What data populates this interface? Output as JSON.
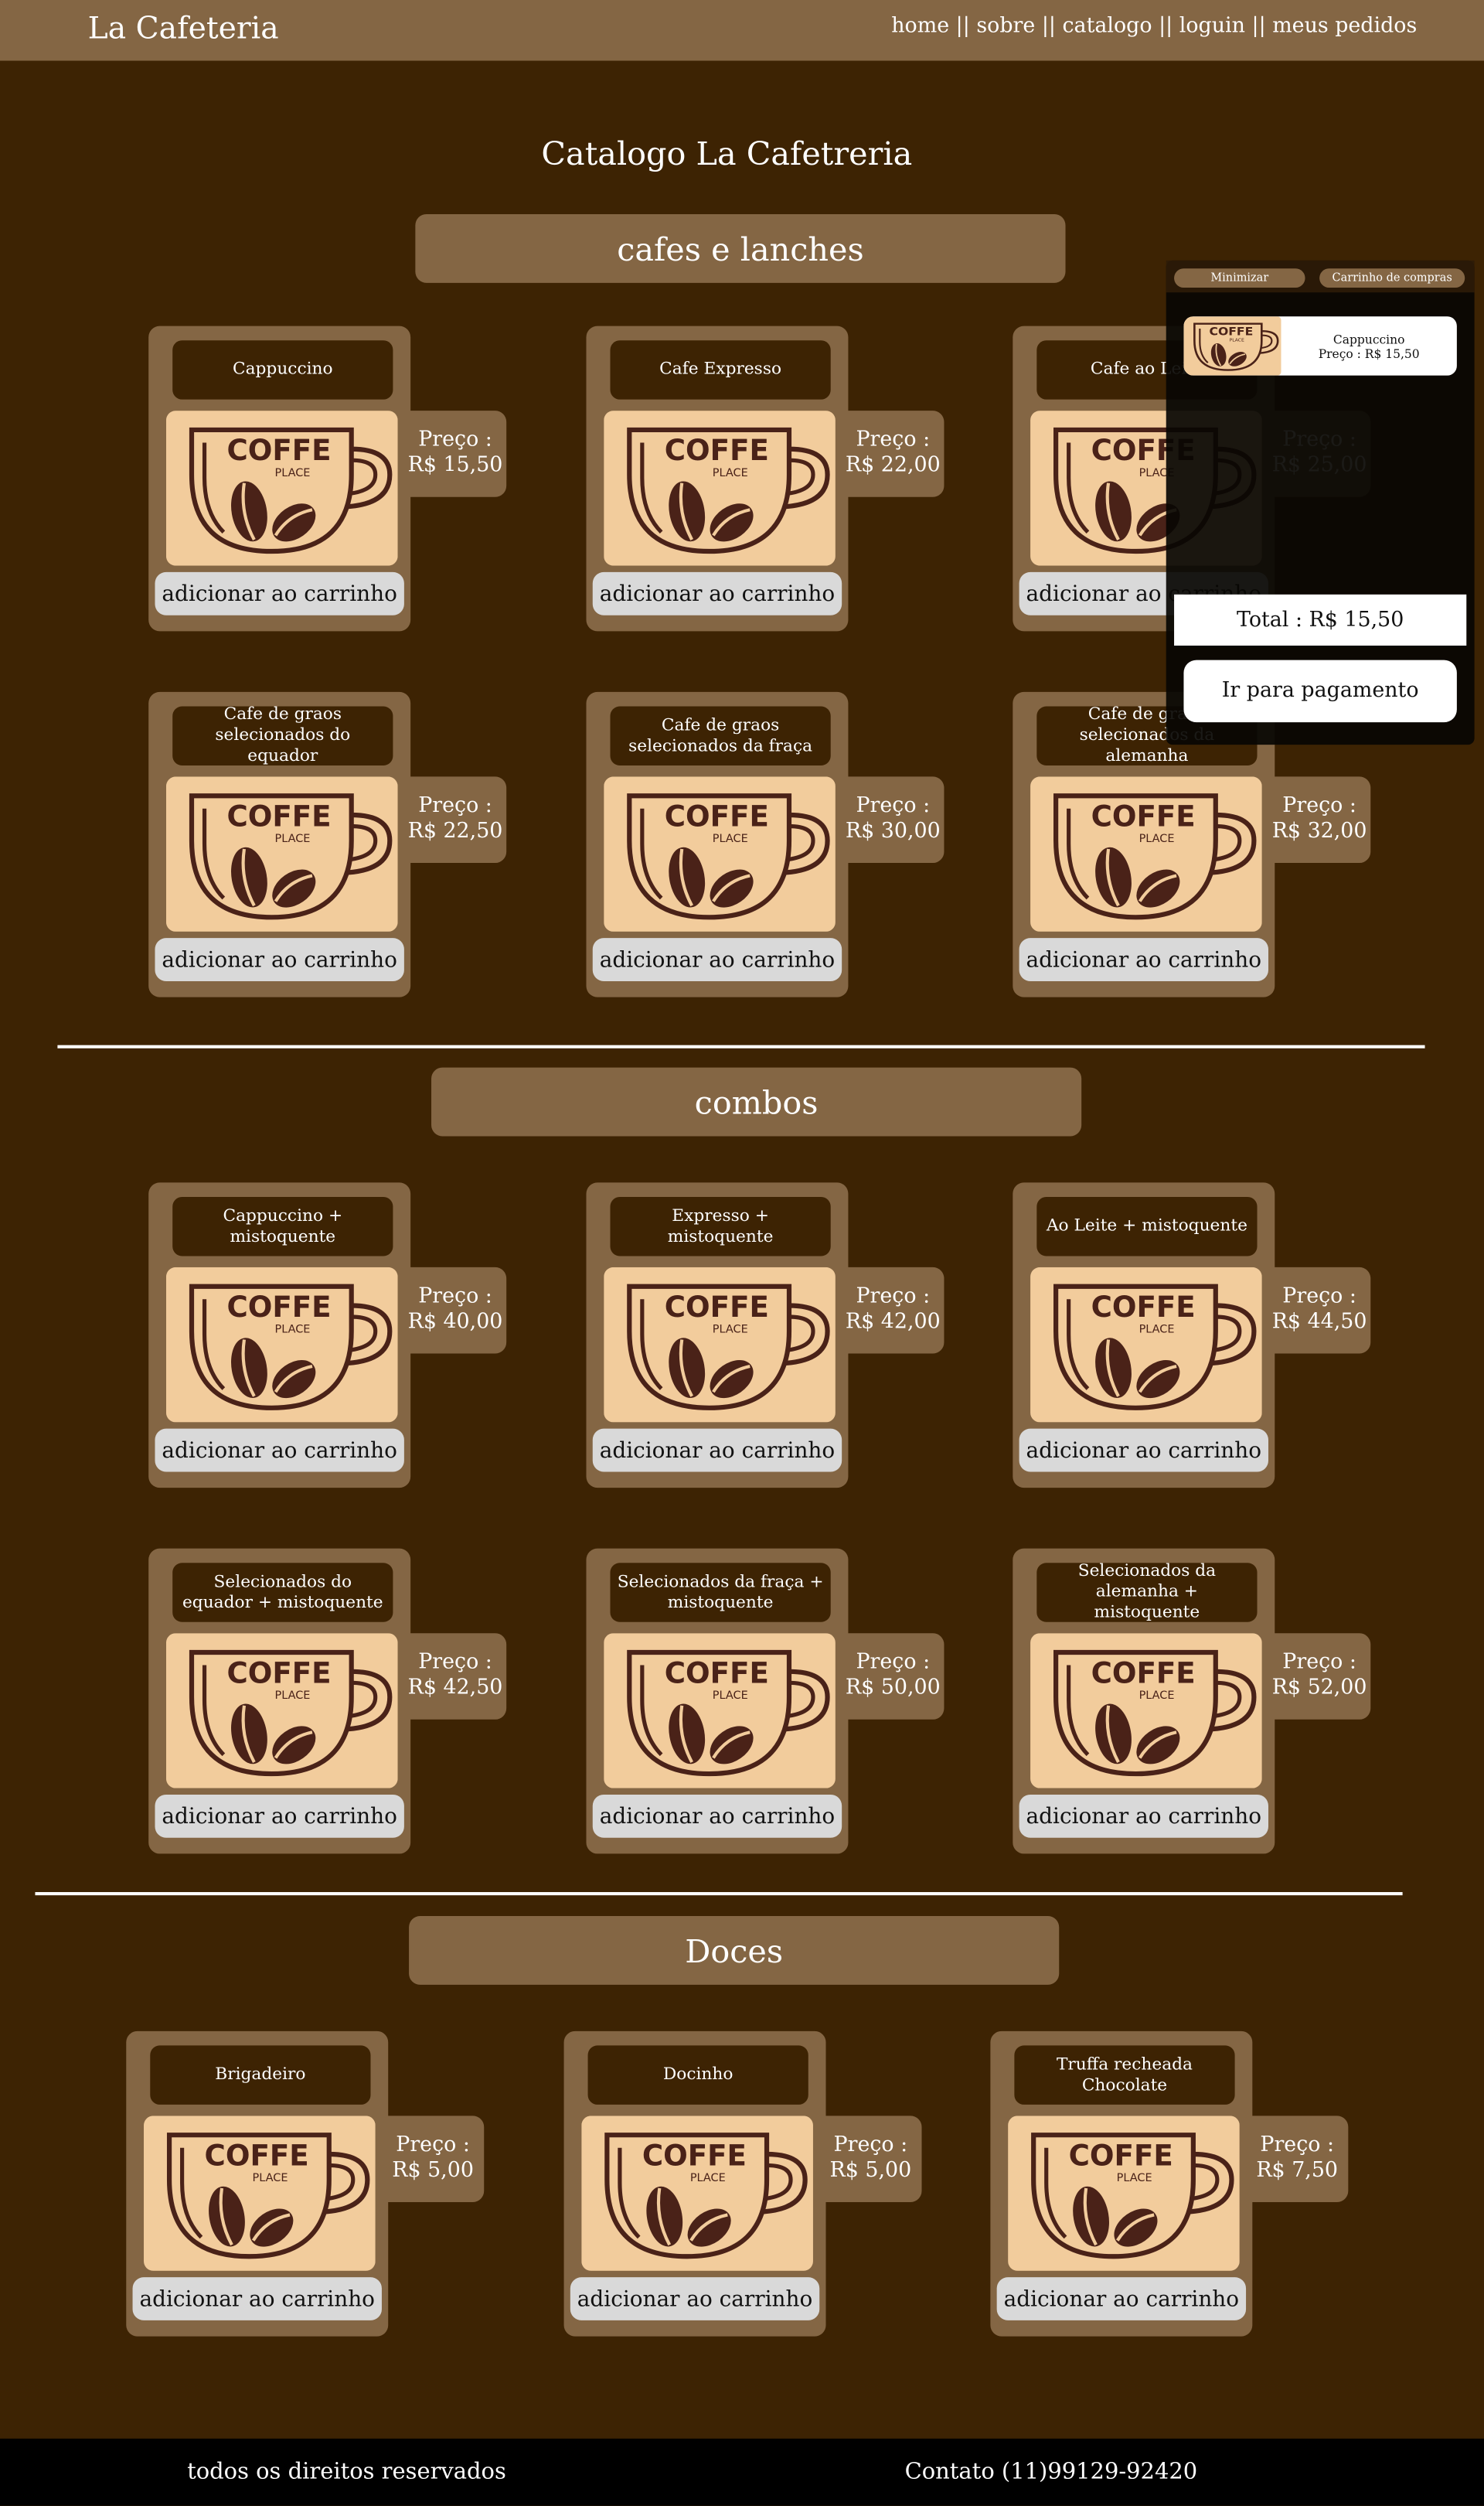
{
  "header": {
    "brand": "La Cafeteria",
    "nav": [
      "home",
      "sobre",
      "catalogo",
      "loguin",
      "meus pedidos"
    ],
    "nav_separator": "||"
  },
  "page_title": "Catalogo La Cafetreria",
  "price_label": "Preço :",
  "add_button": "adicionar ao carrinho",
  "logo": {
    "word": "COFFE",
    "sub": "PLACE"
  },
  "sections": [
    {
      "title": "cafes e lanches",
      "items": [
        {
          "name": "Cappuccino",
          "price": "R$ 15,50"
        },
        {
          "name": "Cafe Expresso",
          "price": "R$ 22,00"
        },
        {
          "name": "Cafe ao Leite",
          "price": "R$ 25,00"
        },
        {
          "name": "Cafe de graos selecionados do equador",
          "price": "R$ 22,50"
        },
        {
          "name": "Cafe de graos selecionados da fraça",
          "price": "R$ 30,00"
        },
        {
          "name": "Cafe de graos selecionados da alemanha",
          "price": "R$ 32,00"
        }
      ]
    },
    {
      "title": "combos",
      "items": [
        {
          "name": "Cappuccino + mistoquente",
          "price": "R$ 40,00"
        },
        {
          "name": "Expresso + mistoquente",
          "price": "R$ 42,00"
        },
        {
          "name": "Ao Leite + mistoquente",
          "price": "R$ 44,50"
        },
        {
          "name": "Selecionados do equador + mistoquente",
          "price": "R$ 42,50"
        },
        {
          "name": "Selecionados da fraça + mistoquente",
          "price": "R$ 50,00"
        },
        {
          "name": "Selecionados da alemanha + mistoquente",
          "price": "R$ 52,00"
        }
      ]
    },
    {
      "title": "Doces",
      "items": [
        {
          "name": "Brigadeiro",
          "price": "R$ 5,00"
        },
        {
          "name": "Docinho",
          "price": "R$ 5,00"
        },
        {
          "name": "Truffa recheada Chocolate",
          "price": "R$ 7,50"
        }
      ]
    }
  ],
  "cart": {
    "minimize": "Minimizar",
    "title": "Carrinho de compras",
    "items": [
      {
        "name": "Cappuccino",
        "price": "Preço : R$ 15,50"
      }
    ],
    "total": "Total : R$ 15,50",
    "checkout": "Ir para pagamento"
  },
  "footer": {
    "rights": "todos os direitos reservados",
    "contact": "Contato (11)99129-92420"
  }
}
